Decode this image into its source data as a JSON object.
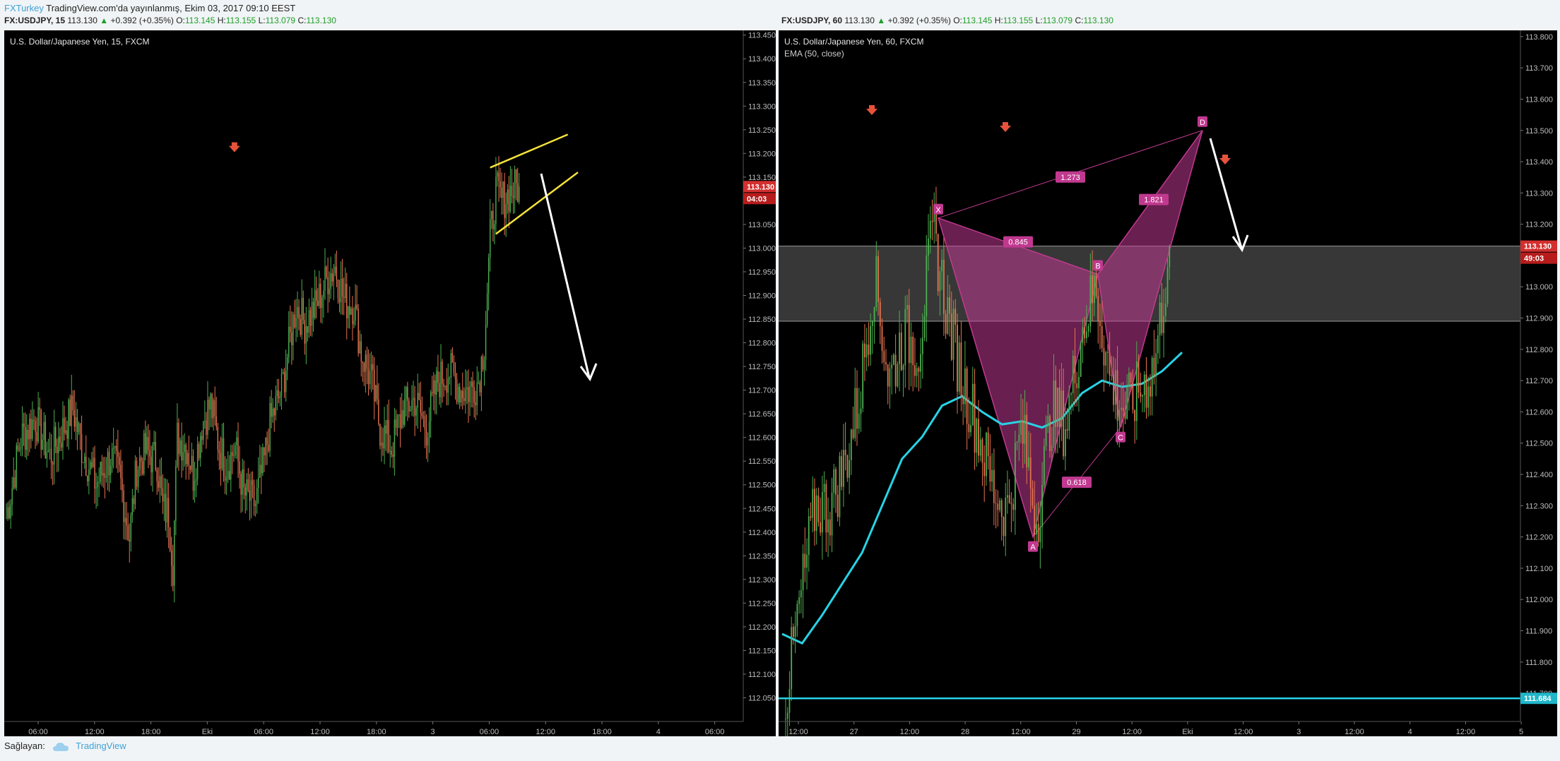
{
  "header": {
    "user": "FXTurkey",
    "published": "TradingView.com'da yayınlanmış, Ekim 03, 2017 09:10 EEST"
  },
  "footer": {
    "label": "Sağlayan:",
    "brand": "TradingView"
  },
  "colors": {
    "up": "#4caf50",
    "down": "#e57350",
    "ema": "#27d3e6",
    "pattern": "#c0398f",
    "marker": "#e8523b",
    "zone": "#4a4a4a"
  },
  "panes": [
    {
      "symline": {
        "symbol": "FX:USDJPY, 15",
        "last": "113.130",
        "arrow": "▲",
        "change": "+0.392 (+0.35%)",
        "o_label": "O:",
        "o": "113.145",
        "h_label": "H:",
        "h": "113.155",
        "l_label": "L:",
        "l": "113.079",
        "c_label": "C:",
        "c": "113.130"
      },
      "title": "U.S. Dollar/Japanese Yen, 15, FXCM",
      "price_label": "113.130",
      "countdown": "04:03"
    },
    {
      "symline": {
        "symbol": "FX:USDJPY, 60",
        "last": "113.130",
        "arrow": "▲",
        "change": "+0.392 (+0.35%)",
        "o_label": "O:",
        "o": "113.145",
        "h_label": "H:",
        "h": "113.155",
        "l_label": "L:",
        "l": "113.079",
        "c_label": "C:",
        "c": "113.130"
      },
      "title": "U.S. Dollar/Japanese Yen, 60, FXCM",
      "indicator": "EMA (50, close)",
      "price_label": "113.130",
      "countdown": "49:03",
      "ema_line_label": "111.684"
    }
  ],
  "chart_data": [
    {
      "type": "candlestick",
      "title": "U.S. Dollar/Japanese Yen, 15, FXCM",
      "y_ticks": [
        "113.450",
        "113.400",
        "113.350",
        "113.300",
        "113.250",
        "113.200",
        "113.150",
        "113.100",
        "113.050",
        "113.000",
        "112.950",
        "112.900",
        "112.850",
        "112.800",
        "112.750",
        "112.700",
        "112.650",
        "112.600",
        "112.550",
        "112.500",
        "112.450",
        "112.400",
        "112.350",
        "112.300",
        "112.250",
        "112.200",
        "112.150",
        "112.100",
        "112.050"
      ],
      "x_ticks": [
        "06:00",
        "12:00",
        "18:00",
        "Eki",
        "06:00",
        "12:00",
        "18:00",
        "3",
        "06:00",
        "12:00",
        "18:00",
        "4",
        "06:00"
      ],
      "ylim": [
        112.0,
        113.46
      ],
      "last_price": 113.13,
      "path": [
        [
          0,
          112.43
        ],
        [
          10,
          112.6
        ],
        [
          20,
          112.64
        ],
        [
          30,
          112.56
        ],
        [
          38,
          112.61
        ],
        [
          46,
          112.66
        ],
        [
          52,
          112.58
        ],
        [
          62,
          112.5
        ],
        [
          72,
          112.56
        ],
        [
          78,
          112.52
        ],
        [
          85,
          112.39
        ],
        [
          90,
          112.54
        ],
        [
          96,
          112.57
        ],
        [
          104,
          112.55
        ],
        [
          108,
          112.45
        ],
        [
          112,
          112.44
        ],
        [
          115,
          112.33
        ],
        [
          118,
          112.6
        ],
        [
          125,
          112.58
        ],
        [
          129,
          112.52
        ],
        [
          135,
          112.63
        ],
        [
          141,
          112.67
        ],
        [
          147,
          112.58
        ],
        [
          152,
          112.54
        ],
        [
          158,
          112.58
        ],
        [
          164,
          112.48
        ],
        [
          172,
          112.46
        ],
        [
          178,
          112.55
        ],
        [
          182,
          112.63
        ],
        [
          190,
          112.7
        ],
        [
          200,
          112.88
        ],
        [
          206,
          112.84
        ],
        [
          214,
          112.88
        ],
        [
          222,
          112.94
        ],
        [
          227,
          112.96
        ],
        [
          233,
          112.89
        ],
        [
          240,
          112.88
        ],
        [
          245,
          112.78
        ],
        [
          252,
          112.72
        ],
        [
          258,
          112.62
        ],
        [
          266,
          112.58
        ],
        [
          274,
          112.66
        ],
        [
          282,
          112.68
        ],
        [
          290,
          112.62
        ],
        [
          298,
          112.72
        ],
        [
          306,
          112.74
        ],
        [
          314,
          112.7
        ],
        [
          320,
          112.7
        ],
        [
          326,
          112.72
        ],
        [
          330,
          112.8
        ],
        [
          334,
          113.02
        ],
        [
          338,
          113.12
        ],
        [
          342,
          113.1
        ],
        [
          348,
          113.12
        ],
        [
          353,
          113.13
        ]
      ],
      "markers": [
        {
          "x": 113.21,
          "idx": 157
        }
      ],
      "annotations": {
        "wedge_upper": [
          [
            113.17,
            334
          ],
          [
            113.24,
            373
          ]
        ],
        "wedge_lower": [
          [
            113.03,
            338
          ],
          [
            113.16,
            380
          ]
        ]
      }
    },
    {
      "type": "candlestick",
      "title": "U.S. Dollar/Japanese Yen, 60, FXCM",
      "indicator": "EMA (50, close)",
      "y_ticks": [
        "113.800",
        "113.700",
        "113.600",
        "113.500",
        "113.400",
        "113.300",
        "113.200",
        "113.100",
        "113.000",
        "112.900",
        "112.800",
        "112.700",
        "112.600",
        "112.500",
        "112.400",
        "112.300",
        "112.200",
        "112.100",
        "112.000",
        "111.900",
        "111.800",
        "111.700"
      ],
      "x_ticks": [
        "12:00",
        "27",
        "12:00",
        "28",
        "12:00",
        "29",
        "12:00",
        "Eki",
        "12:00",
        "3",
        "12:00",
        "4",
        "12:00",
        "5"
      ],
      "ylim": [
        111.61,
        113.82
      ],
      "last_price": 113.13,
      "horizontal_line": 111.684,
      "resistance_zone": [
        112.89,
        113.13
      ],
      "harmonic": {
        "X": 113.22,
        "A": 112.2,
        "B": 113.04,
        "C": 112.55,
        "D": 113.5,
        "ratios": [
          "0.845",
          "0.618",
          "1.273",
          "1.821"
        ]
      },
      "ema_points": [
        111.89,
        111.86,
        111.95,
        112.05,
        112.15,
        112.3,
        112.45,
        112.52,
        112.62,
        112.65,
        112.6,
        112.56,
        112.57,
        112.55,
        112.58,
        112.66,
        112.7,
        112.68,
        112.69,
        112.73,
        112.79
      ],
      "close_path": [
        111.68,
        112.0,
        112.3,
        112.3,
        112.43,
        112.65,
        113.04,
        112.7,
        112.85,
        112.8,
        113.18,
        112.9,
        112.7,
        112.55,
        112.36,
        112.28,
        112.55,
        112.25,
        112.6,
        112.56,
        112.85,
        113.0,
        112.7,
        112.6,
        112.67,
        112.75,
        113.13
      ]
    }
  ]
}
